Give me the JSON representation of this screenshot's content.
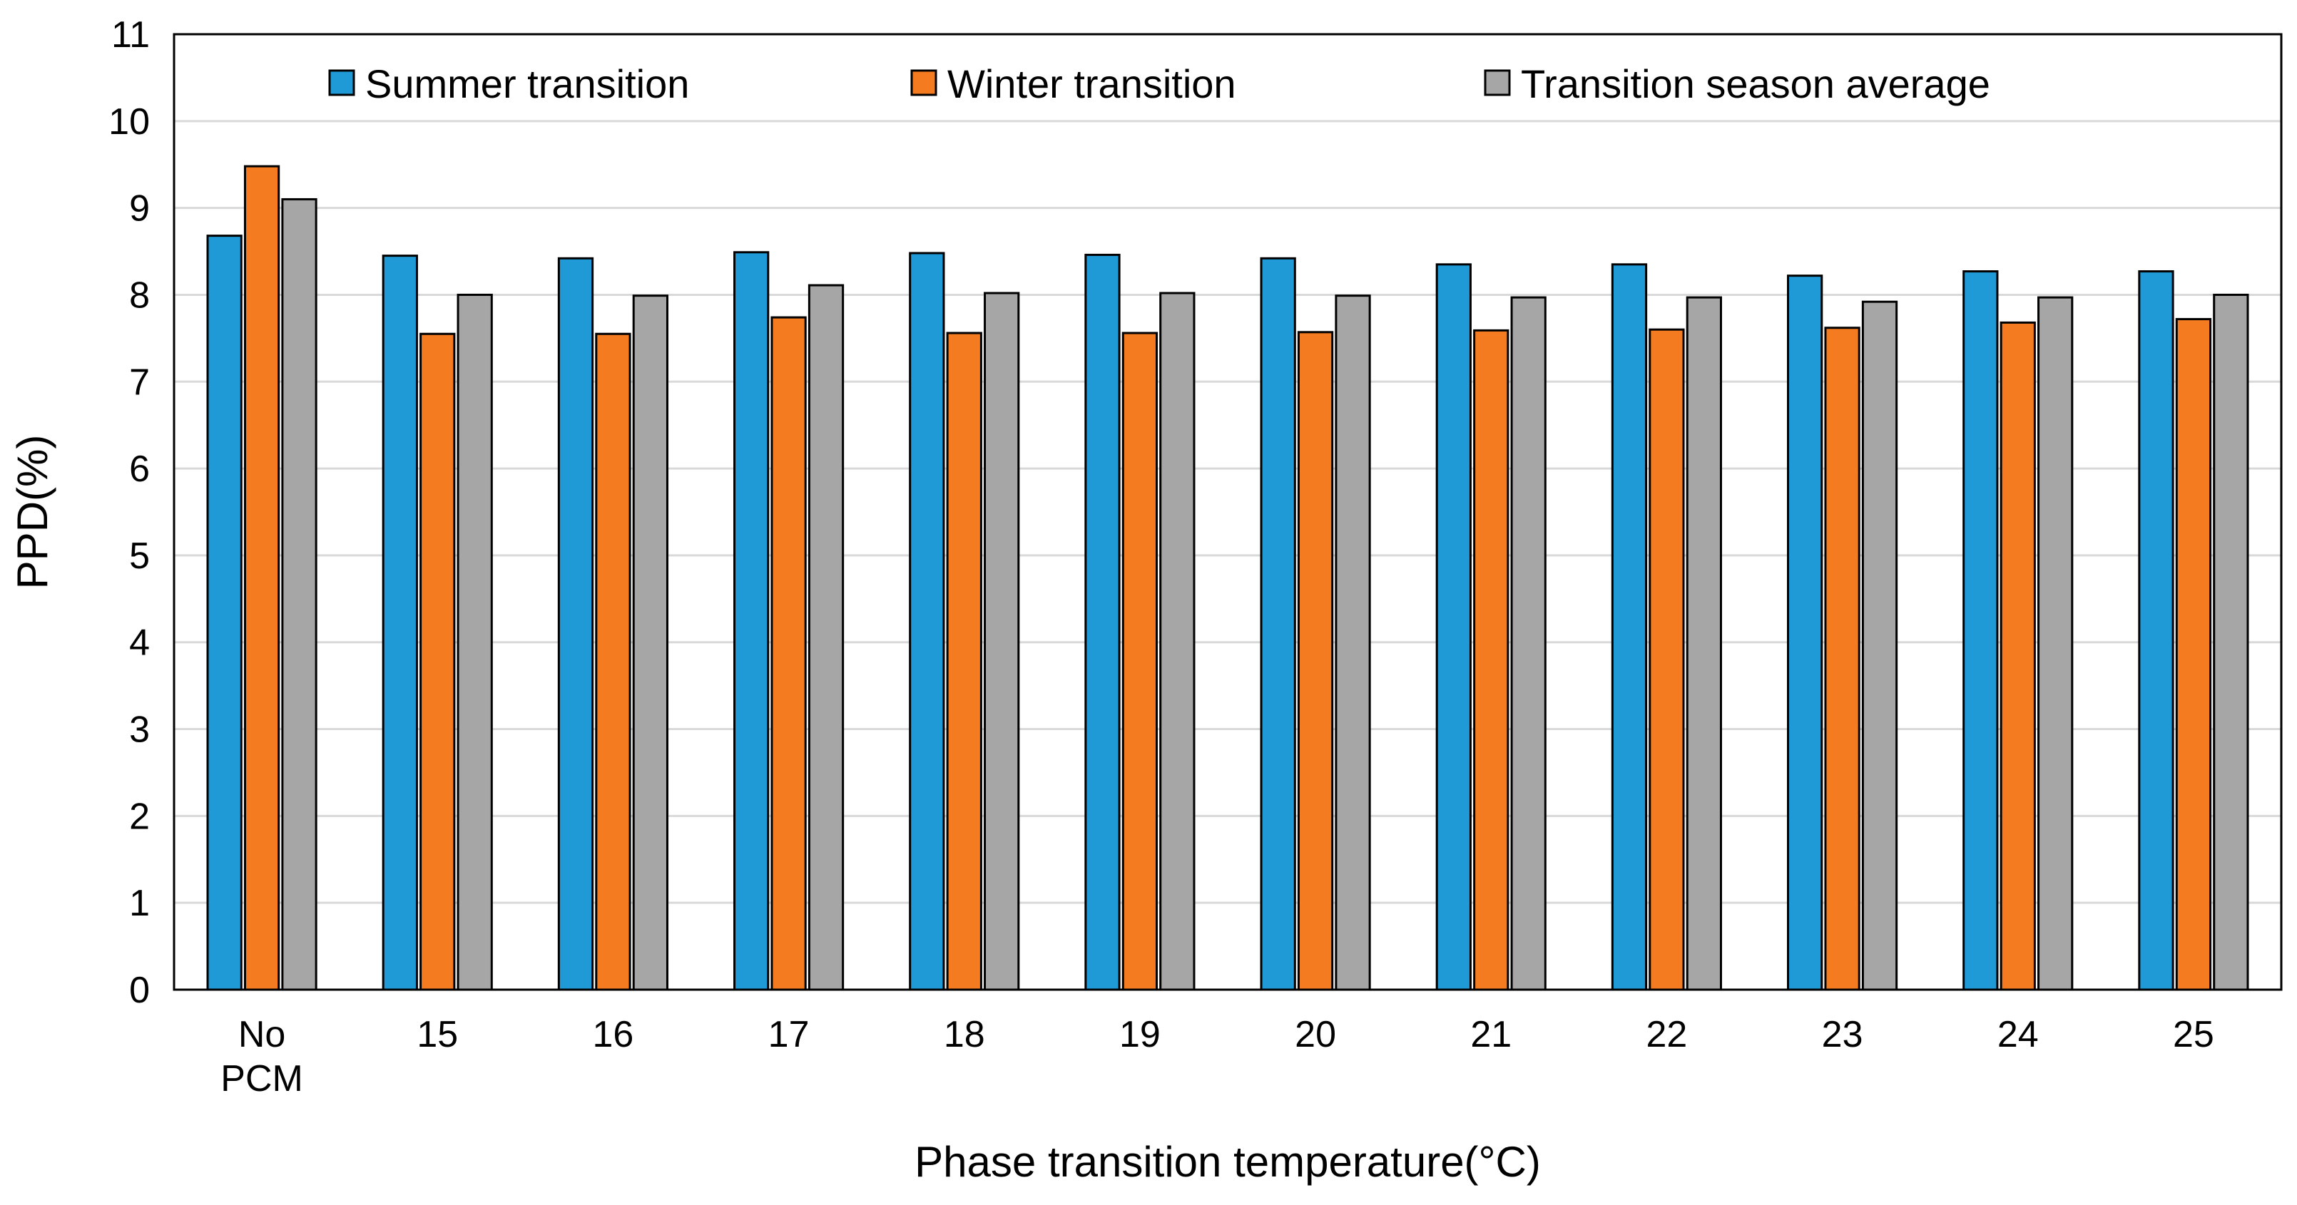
{
  "chart_data": {
    "type": "bar",
    "title": "",
    "xlabel": "Phase transition temperature(°C)",
    "ylabel": "PPD(%)",
    "ylim": [
      0,
      11
    ],
    "yticks": [
      0,
      1,
      2,
      3,
      4,
      5,
      6,
      7,
      8,
      9,
      10,
      11
    ],
    "grid": true,
    "legend_position": "top",
    "categories": [
      [
        "No",
        "PCM"
      ],
      [
        "15"
      ],
      [
        "16"
      ],
      [
        "17"
      ],
      [
        "18"
      ],
      [
        "19"
      ],
      [
        "20"
      ],
      [
        "21"
      ],
      [
        "22"
      ],
      [
        "23"
      ],
      [
        "24"
      ],
      [
        "25"
      ]
    ],
    "series": [
      {
        "name": "Summer transition",
        "color": "#1f9ad6",
        "values": [
          8.68,
          8.45,
          8.42,
          8.49,
          8.48,
          8.46,
          8.42,
          8.35,
          8.35,
          8.22,
          8.27,
          8.27
        ]
      },
      {
        "name": "Winter transition",
        "color": "#f47b20",
        "values": [
          9.48,
          7.55,
          7.55,
          7.74,
          7.56,
          7.56,
          7.57,
          7.59,
          7.6,
          7.62,
          7.68,
          7.72
        ]
      },
      {
        "name": "Transition season average",
        "color": "#a6a6a6",
        "values": [
          9.1,
          8.0,
          7.99,
          8.11,
          8.02,
          8.02,
          7.99,
          7.97,
          7.97,
          7.92,
          7.97,
          8.0
        ]
      }
    ]
  }
}
